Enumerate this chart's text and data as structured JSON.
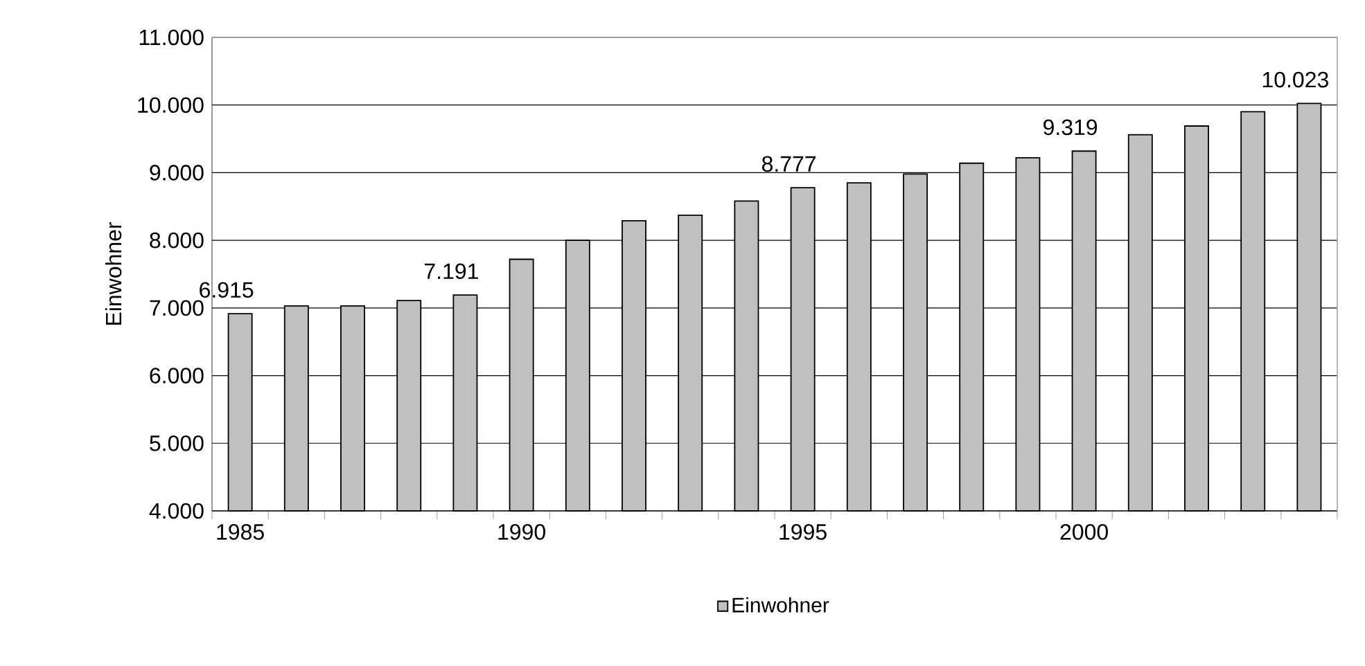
{
  "chart_data": {
    "type": "bar",
    "ylabel": "Einwohner",
    "categories": [
      "1985",
      null,
      null,
      null,
      null,
      "1990",
      null,
      null,
      null,
      null,
      "1995",
      null,
      null,
      null,
      null,
      "2000",
      null,
      null,
      null,
      null
    ],
    "series": [
      {
        "name": "Einwohner",
        "color": "#c0c0c0",
        "values": [
          6915,
          7030,
          7030,
          7110,
          7191,
          7720,
          8000,
          8290,
          8370,
          8580,
          8777,
          8850,
          8980,
          9140,
          9220,
          9319,
          9560,
          9690,
          9900,
          10023
        ],
        "value_labels": [
          "6.915",
          null,
          null,
          null,
          "7.191",
          null,
          null,
          null,
          null,
          null,
          "8.777",
          null,
          null,
          null,
          null,
          "9.319",
          null,
          null,
          null,
          "10.023"
        ]
      }
    ],
    "ylim": [
      4000,
      11000
    ],
    "yticks": [
      {
        "value": 4000,
        "label": "4.000"
      },
      {
        "value": 5000,
        "label": "5.000"
      },
      {
        "value": 6000,
        "label": "6.000"
      },
      {
        "value": 7000,
        "label": "7.000"
      },
      {
        "value": 8000,
        "label": "8.000"
      },
      {
        "value": 9000,
        "label": "9.000"
      },
      {
        "value": 10000,
        "label": "10.000"
      },
      {
        "value": 11000,
        "label": "11.000"
      }
    ],
    "grid": "y",
    "legend": "bottom"
  }
}
